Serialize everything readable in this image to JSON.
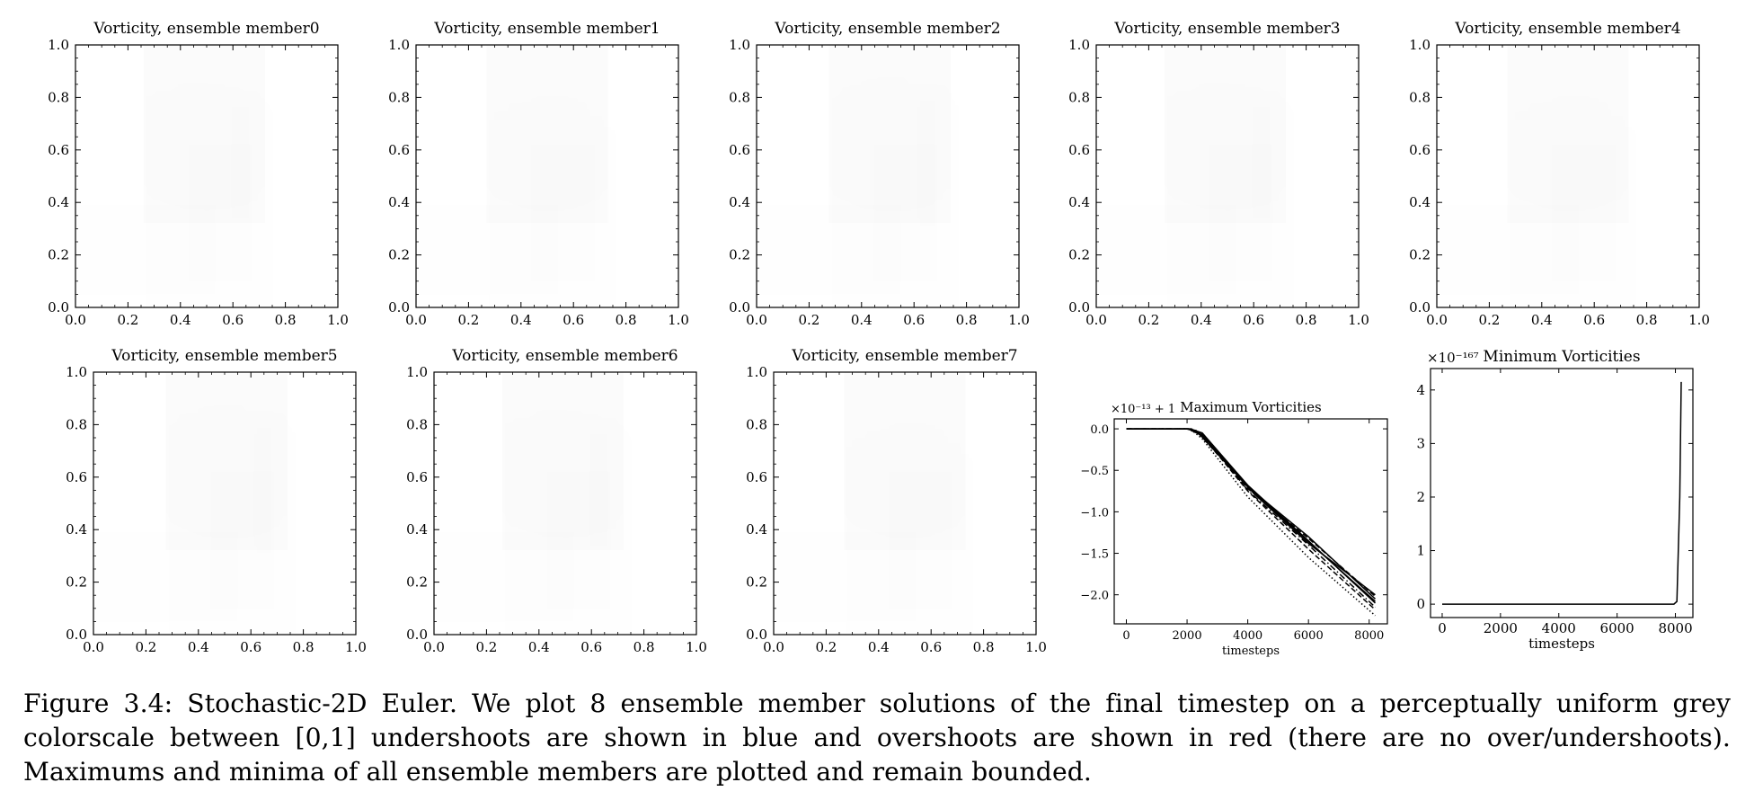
{
  "figure": {
    "field_panels": [
      {
        "title": "Vorticity, ensemble member0"
      },
      {
        "title": "Vorticity, ensemble member1"
      },
      {
        "title": "Vorticity, ensemble member2"
      },
      {
        "title": "Vorticity, ensemble member3"
      },
      {
        "title": "Vorticity, ensemble member4"
      },
      {
        "title": "Vorticity, ensemble member5"
      },
      {
        "title": "Vorticity, ensemble member6"
      },
      {
        "title": "Vorticity, ensemble member7"
      }
    ],
    "field_axis_ticks": [
      "0.0",
      "0.2",
      "0.4",
      "0.6",
      "0.8",
      "1.0"
    ],
    "colormap": {
      "low": "#ffffff",
      "high": "#000000",
      "undershoot": "blue",
      "overshoot": "red"
    }
  },
  "chart_data": [
    {
      "type": "line",
      "title": "Maximum Vorticities",
      "xlabel": "timesteps",
      "ylabel": "",
      "offset_label": "×10⁻¹³ + 1",
      "x_ticks": [
        "0",
        "2000",
        "4000",
        "6000",
        "8000"
      ],
      "y_ticks": [
        "0.0",
        "−0.5",
        "−1.0",
        "−1.5",
        "−2.0"
      ],
      "xlim": [
        -400,
        8600
      ],
      "ylim": [
        -2.35,
        0.12
      ],
      "series": [
        {
          "style": "solid",
          "x": [
            0,
            2000,
            2300,
            4000,
            6000,
            8200
          ],
          "y": [
            0.0,
            0.0,
            -0.02,
            -0.7,
            -1.3,
            -2.05
          ]
        },
        {
          "style": "solid",
          "x": [
            0,
            2100,
            2500,
            4000,
            6000,
            8200
          ],
          "y": [
            0.0,
            0.0,
            -0.05,
            -0.68,
            -1.35,
            -2.1
          ]
        },
        {
          "style": "dashed",
          "x": [
            0,
            2000,
            2400,
            4000,
            6000,
            8200
          ],
          "y": [
            0.0,
            0.0,
            -0.06,
            -0.72,
            -1.32,
            -2.02
          ]
        },
        {
          "style": "dashdot",
          "x": [
            0,
            2050,
            2600,
            4000,
            6000,
            8200
          ],
          "y": [
            0.0,
            0.0,
            -0.1,
            -0.74,
            -1.4,
            -2.15
          ]
        },
        {
          "style": "solid",
          "x": [
            0,
            2150,
            2700,
            4200,
            6000,
            8200
          ],
          "y": [
            0.0,
            0.0,
            -0.15,
            -0.78,
            -1.38,
            -2.0
          ]
        },
        {
          "style": "dotted",
          "x": [
            0,
            2100,
            2500,
            4000,
            6000,
            8200
          ],
          "y": [
            0.0,
            0.0,
            -0.12,
            -0.82,
            -1.55,
            -2.25
          ]
        },
        {
          "style": "dashed",
          "x": [
            0,
            2050,
            2500,
            4000,
            6000,
            8200
          ],
          "y": [
            0.0,
            0.0,
            -0.08,
            -0.75,
            -1.45,
            -2.18
          ]
        },
        {
          "style": "solid",
          "x": [
            0,
            2000,
            2450,
            4000,
            6000,
            8200
          ],
          "y": [
            0.0,
            0.0,
            -0.05,
            -0.7,
            -1.36,
            -2.08
          ]
        }
      ]
    },
    {
      "type": "line",
      "title": "Minimum Vorticities",
      "xlabel": "timesteps",
      "ylabel": "",
      "offset_label": "×10⁻¹⁶⁷",
      "x_ticks": [
        "0",
        "2000",
        "4000",
        "6000",
        "8000"
      ],
      "y_ticks": [
        "0",
        "1",
        "2",
        "3",
        "4"
      ],
      "xlim": [
        -400,
        8600
      ],
      "ylim": [
        -0.25,
        4.4
      ],
      "series": [
        {
          "style": "solid",
          "x": [
            0,
            7950,
            8050,
            8150,
            8200
          ],
          "y": [
            0,
            0,
            0.05,
            2.0,
            4.15
          ]
        }
      ]
    }
  ],
  "caption": "Figure 3.4: Stochastic-2D Euler. We plot 8 ensemble member solutions of the final timestep on a perceptually uniform grey colorscale between [0,1] undershoots are shown in blue and overshoots are shown in red (there are no over/undershoots). Maximums and minima of all ensemble members are plotted and remain bounded."
}
